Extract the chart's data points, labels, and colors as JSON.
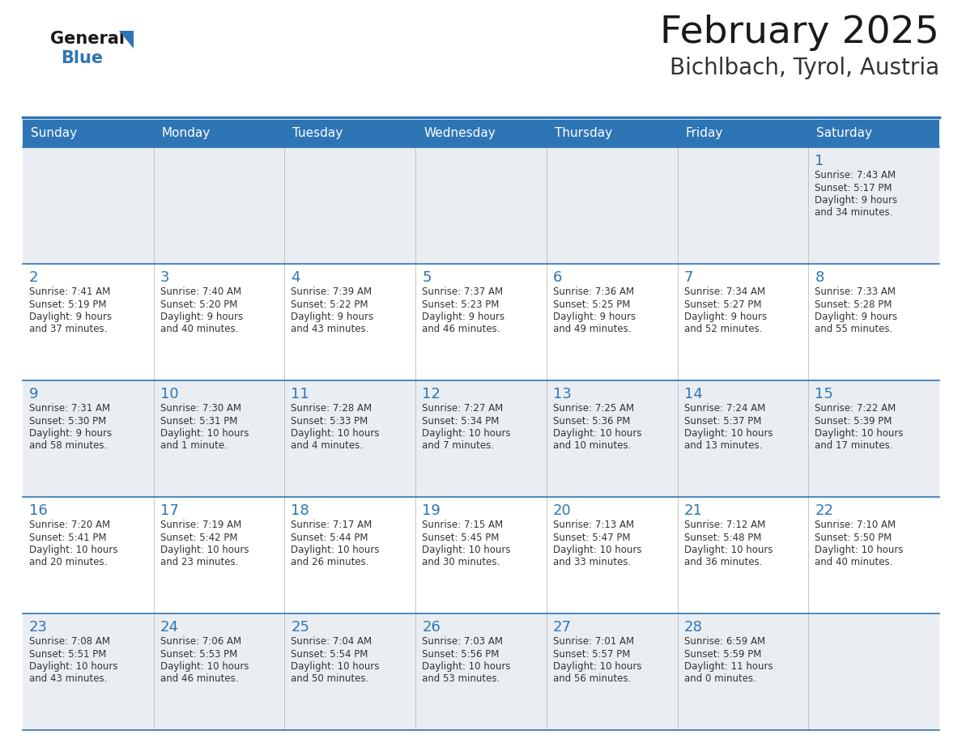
{
  "title": "February 2025",
  "subtitle": "Bichlbach, Tyrol, Austria",
  "header_color": "#2E75B6",
  "header_text_color": "#FFFFFF",
  "day_names": [
    "Sunday",
    "Monday",
    "Tuesday",
    "Wednesday",
    "Thursday",
    "Friday",
    "Saturday"
  ],
  "bg_color": "#FFFFFF",
  "row_bg_odd": "#EAEEF3",
  "row_bg_even": "#FFFFFF",
  "border_color": "#2E75B6",
  "day_number_color": "#2E75B6",
  "text_color": "#333333",
  "logo_general_color": "#1a1a1a",
  "logo_blue_color": "#2E75B6",
  "calendar": [
    [
      null,
      null,
      null,
      null,
      null,
      null,
      {
        "day": 1,
        "sunrise": "7:43 AM",
        "sunset": "5:17 PM",
        "daylight": "9 hours\nand 34 minutes."
      }
    ],
    [
      {
        "day": 2,
        "sunrise": "7:41 AM",
        "sunset": "5:19 PM",
        "daylight": "9 hours\nand 37 minutes."
      },
      {
        "day": 3,
        "sunrise": "7:40 AM",
        "sunset": "5:20 PM",
        "daylight": "9 hours\nand 40 minutes."
      },
      {
        "day": 4,
        "sunrise": "7:39 AM",
        "sunset": "5:22 PM",
        "daylight": "9 hours\nand 43 minutes."
      },
      {
        "day": 5,
        "sunrise": "7:37 AM",
        "sunset": "5:23 PM",
        "daylight": "9 hours\nand 46 minutes."
      },
      {
        "day": 6,
        "sunrise": "7:36 AM",
        "sunset": "5:25 PM",
        "daylight": "9 hours\nand 49 minutes."
      },
      {
        "day": 7,
        "sunrise": "7:34 AM",
        "sunset": "5:27 PM",
        "daylight": "9 hours\nand 52 minutes."
      },
      {
        "day": 8,
        "sunrise": "7:33 AM",
        "sunset": "5:28 PM",
        "daylight": "9 hours\nand 55 minutes."
      }
    ],
    [
      {
        "day": 9,
        "sunrise": "7:31 AM",
        "sunset": "5:30 PM",
        "daylight": "9 hours\nand 58 minutes."
      },
      {
        "day": 10,
        "sunrise": "7:30 AM",
        "sunset": "5:31 PM",
        "daylight": "10 hours\nand 1 minute."
      },
      {
        "day": 11,
        "sunrise": "7:28 AM",
        "sunset": "5:33 PM",
        "daylight": "10 hours\nand 4 minutes."
      },
      {
        "day": 12,
        "sunrise": "7:27 AM",
        "sunset": "5:34 PM",
        "daylight": "10 hours\nand 7 minutes."
      },
      {
        "day": 13,
        "sunrise": "7:25 AM",
        "sunset": "5:36 PM",
        "daylight": "10 hours\nand 10 minutes."
      },
      {
        "day": 14,
        "sunrise": "7:24 AM",
        "sunset": "5:37 PM",
        "daylight": "10 hours\nand 13 minutes."
      },
      {
        "day": 15,
        "sunrise": "7:22 AM",
        "sunset": "5:39 PM",
        "daylight": "10 hours\nand 17 minutes."
      }
    ],
    [
      {
        "day": 16,
        "sunrise": "7:20 AM",
        "sunset": "5:41 PM",
        "daylight": "10 hours\nand 20 minutes."
      },
      {
        "day": 17,
        "sunrise": "7:19 AM",
        "sunset": "5:42 PM",
        "daylight": "10 hours\nand 23 minutes."
      },
      {
        "day": 18,
        "sunrise": "7:17 AM",
        "sunset": "5:44 PM",
        "daylight": "10 hours\nand 26 minutes."
      },
      {
        "day": 19,
        "sunrise": "7:15 AM",
        "sunset": "5:45 PM",
        "daylight": "10 hours\nand 30 minutes."
      },
      {
        "day": 20,
        "sunrise": "7:13 AM",
        "sunset": "5:47 PM",
        "daylight": "10 hours\nand 33 minutes."
      },
      {
        "day": 21,
        "sunrise": "7:12 AM",
        "sunset": "5:48 PM",
        "daylight": "10 hours\nand 36 minutes."
      },
      {
        "day": 22,
        "sunrise": "7:10 AM",
        "sunset": "5:50 PM",
        "daylight": "10 hours\nand 40 minutes."
      }
    ],
    [
      {
        "day": 23,
        "sunrise": "7:08 AM",
        "sunset": "5:51 PM",
        "daylight": "10 hours\nand 43 minutes."
      },
      {
        "day": 24,
        "sunrise": "7:06 AM",
        "sunset": "5:53 PM",
        "daylight": "10 hours\nand 46 minutes."
      },
      {
        "day": 25,
        "sunrise": "7:04 AM",
        "sunset": "5:54 PM",
        "daylight": "10 hours\nand 50 minutes."
      },
      {
        "day": 26,
        "sunrise": "7:03 AM",
        "sunset": "5:56 PM",
        "daylight": "10 hours\nand 53 minutes."
      },
      {
        "day": 27,
        "sunrise": "7:01 AM",
        "sunset": "5:57 PM",
        "daylight": "10 hours\nand 56 minutes."
      },
      {
        "day": 28,
        "sunrise": "6:59 AM",
        "sunset": "5:59 PM",
        "daylight": "11 hours\nand 0 minutes."
      },
      null
    ]
  ]
}
